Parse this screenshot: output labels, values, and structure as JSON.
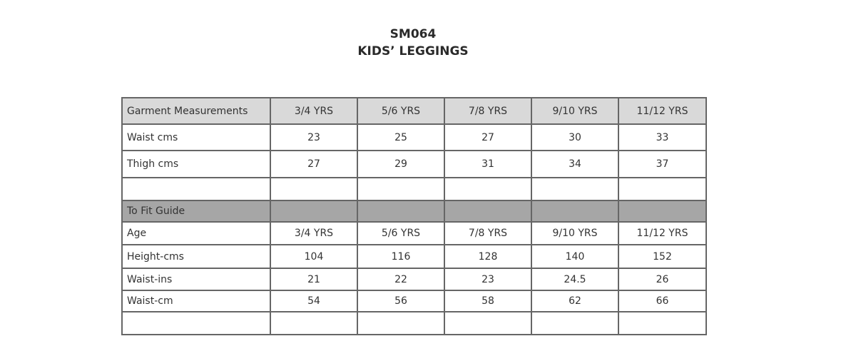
{
  "header": {
    "code": "SM064",
    "title": "KIDS’ LEGGINGS"
  },
  "table": {
    "header": [
      "Garment Measurements",
      "3/4 YRS",
      "5/6 YRS",
      "7/8 YRS",
      "9/10 YRS",
      "11/12 YRS"
    ],
    "rows": [
      [
        "Waist cms",
        "23",
        "25",
        "27",
        "30",
        "33"
      ],
      [
        "Thigh cms",
        "27",
        "29",
        "31",
        "34",
        "37"
      ]
    ]
  },
  "fit_guide": {
    "title": "To Fit Guide",
    "rows": [
      [
        "Age",
        "3/4 YRS",
        "5/6 YRS",
        "7/8 YRS",
        "9/10 YRS",
        "11/12 YRS"
      ],
      [
        "Height-cms",
        "104",
        "116",
        "128",
        "140",
        "152"
      ],
      [
        "Waist-ins",
        "21",
        "22",
        "23",
        "24.5",
        "26"
      ],
      [
        "Waist-cm",
        "54",
        "56",
        "58",
        "62",
        "66"
      ]
    ]
  }
}
